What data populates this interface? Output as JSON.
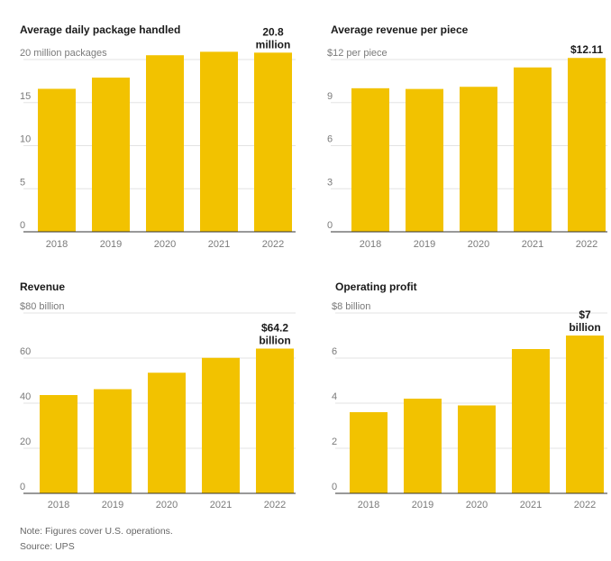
{
  "colors": {
    "bar": "#f2c200",
    "grid": "#e3e3e3",
    "axis": "#333333",
    "text": "#1a1a1a",
    "muted": "#7a7a7a"
  },
  "chart_data": [
    {
      "type": "bar",
      "title": "Average daily package handled",
      "categories": [
        "2018",
        "2019",
        "2020",
        "2021",
        "2022"
      ],
      "values": [
        16.6,
        17.9,
        20.5,
        20.9,
        20.8
      ],
      "ylim": [
        0,
        20
      ],
      "yticks": [
        0,
        5,
        10,
        15,
        20
      ],
      "ytick_labels": [
        "0",
        "5",
        "10",
        "15",
        "20 million packages"
      ],
      "annotation": {
        "index": 4,
        "lines": [
          "20.8",
          "million"
        ]
      }
    },
    {
      "type": "bar",
      "title": "Average revenue per piece",
      "categories": [
        "2018",
        "2019",
        "2020",
        "2021",
        "2022"
      ],
      "values": [
        10.0,
        9.95,
        10.1,
        11.45,
        12.11
      ],
      "ylim": [
        0,
        12
      ],
      "yticks": [
        0,
        3,
        6,
        9,
        12
      ],
      "ytick_labels": [
        "0",
        "3",
        "6",
        "9",
        "$12 per piece"
      ],
      "annotation": {
        "index": 4,
        "lines": [
          "$12.11"
        ]
      }
    },
    {
      "type": "bar",
      "title": "Revenue",
      "categories": [
        "2018",
        "2019",
        "2020",
        "2021",
        "2022"
      ],
      "values": [
        43.6,
        46.2,
        53.5,
        60.1,
        64.2
      ],
      "ylim": [
        0,
        80
      ],
      "yticks": [
        0,
        20,
        40,
        60,
        80
      ],
      "ytick_labels": [
        "0",
        "20",
        "40",
        "60",
        "$80 billion"
      ],
      "annotation": {
        "index": 4,
        "lines": [
          "$64.2",
          "billion"
        ]
      }
    },
    {
      "type": "bar",
      "title": "Operating profit",
      "categories": [
        "2018",
        "2019",
        "2020",
        "2021",
        "2022"
      ],
      "values": [
        3.6,
        4.2,
        3.9,
        6.4,
        7.0
      ],
      "ylim": [
        0,
        8
      ],
      "yticks": [
        0,
        2,
        4,
        6,
        8
      ],
      "ytick_labels": [
        "0",
        "2",
        "4",
        "6",
        "$8 billion"
      ],
      "annotation": {
        "index": 4,
        "lines": [
          "$7",
          "billion"
        ]
      }
    }
  ],
  "footer": {
    "note": "Note: Figures cover U.S. operations.",
    "source": "Source: UPS"
  }
}
